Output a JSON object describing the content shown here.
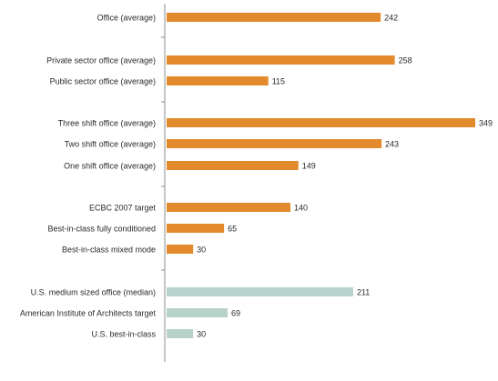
{
  "chart_data": {
    "type": "bar",
    "orientation": "horizontal",
    "grid": false,
    "legend": "none",
    "xlim": [
      0,
      349
    ],
    "colors": {
      "primary": "#e38b2c",
      "comparison": "#b7d2ca",
      "axis": "#8c8c8c",
      "label": "#2a2a2a"
    },
    "bars": [
      {
        "label": "Office (average)",
        "value": 242,
        "group": "primary"
      },
      {
        "label": "Private sector office (average)",
        "value": 258,
        "group": "primary"
      },
      {
        "label": "Public sector office (average)",
        "value": 115,
        "group": "primary"
      },
      {
        "label": "Three shift office (average)",
        "value": 349,
        "group": "primary"
      },
      {
        "label": "Two shift office (average)",
        "value": 243,
        "group": "primary"
      },
      {
        "label": "One shift office (average)",
        "value": 149,
        "group": "primary"
      },
      {
        "label": "ECBC 2007 target",
        "value": 140,
        "group": "primary"
      },
      {
        "label": "Best-in-class fully conditioned",
        "value": 65,
        "group": "primary"
      },
      {
        "label": "Best-in-class mixed mode",
        "value": 30,
        "group": "primary"
      },
      {
        "label": "U.S. medium sized office (median)",
        "value": 211,
        "group": "comparison"
      },
      {
        "label": "American Institute of Architects target",
        "value": 69,
        "group": "comparison"
      },
      {
        "label": "U.S. best-in-class",
        "value": 30,
        "group": "comparison"
      }
    ]
  }
}
